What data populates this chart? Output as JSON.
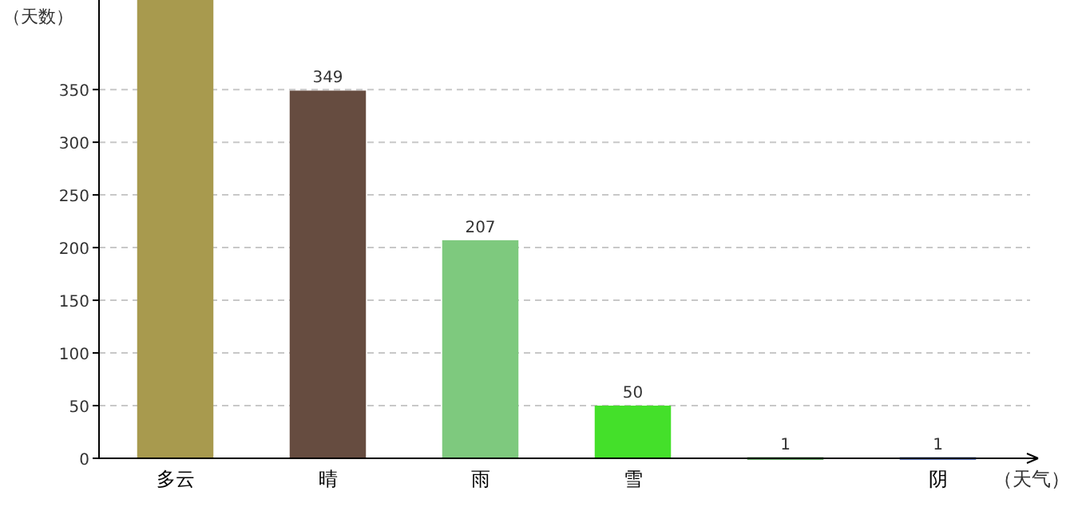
{
  "chart_data": {
    "type": "bar",
    "xlabel": "（天气）",
    "ylabel": "（天数）",
    "categories": [
      "多云",
      "晴",
      "雨",
      "雪",
      null,
      "阴"
    ],
    "values": [
      435,
      349,
      207,
      50,
      1,
      1
    ],
    "value_labels": [
      null,
      "349",
      "207",
      "50",
      "1",
      "1"
    ],
    "colors": [
      "#a89a4e",
      "#664c40",
      "#7ec97e",
      "#44e02a",
      "#2a8a2a",
      "#1f3f9f"
    ],
    "ylim": [
      0,
      435
    ],
    "yticks": [
      0,
      50,
      100,
      150,
      200,
      250,
      300,
      350
    ],
    "grid": "y"
  }
}
